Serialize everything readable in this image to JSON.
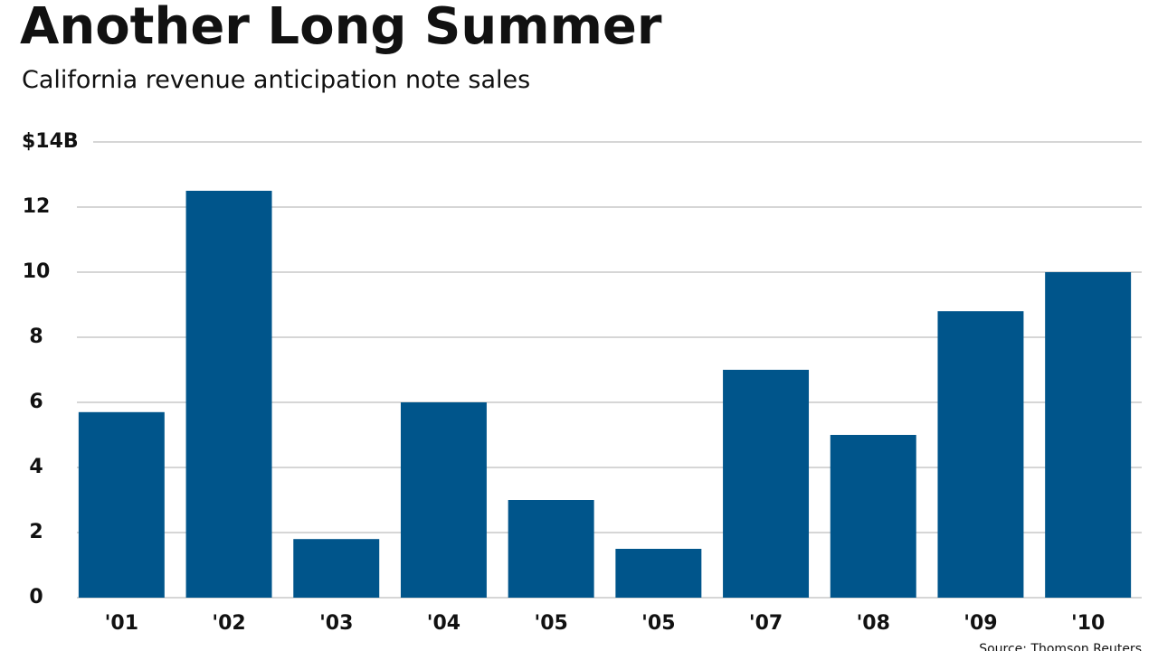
{
  "chart_data": {
    "type": "bar",
    "title": "Another Long Summer",
    "subtitle": "California revenue anticipation note sales",
    "source": "Source: Thomson Reuters",
    "categories": [
      "'01",
      "'02",
      "'03",
      "'04",
      "'05",
      "'05",
      "'07",
      "'08",
      "'09",
      "'10"
    ],
    "values": [
      5.7,
      12.5,
      1.8,
      6.0,
      3.0,
      1.5,
      7.0,
      5.0,
      8.8,
      10.0
    ],
    "color": "#00558b",
    "ylim": [
      0,
      14
    ],
    "yticks": [
      0,
      2,
      4,
      6,
      8,
      10,
      12,
      {
        "value": 14,
        "label": "$14B"
      }
    ],
    "grid": true
  }
}
